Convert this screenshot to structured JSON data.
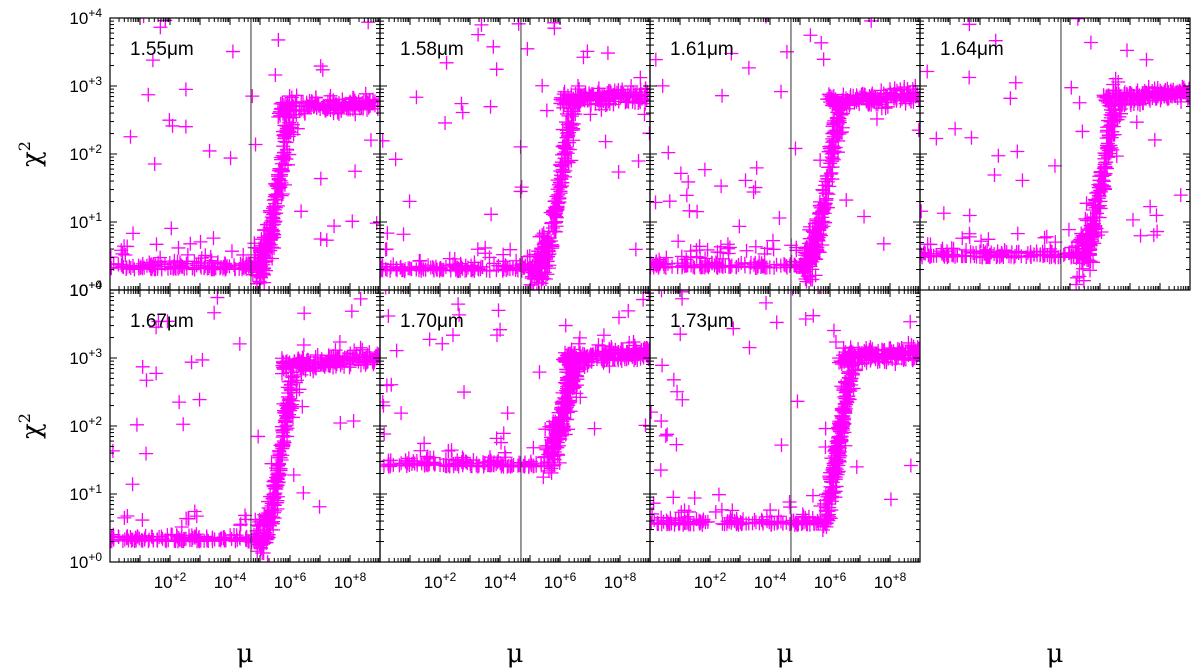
{
  "chart_data": {
    "type": "scatter",
    "marker": "plus",
    "color": "#ff00ff",
    "x_scale": "log",
    "y_scale": "log",
    "xlim": [
      1,
      1000000000
    ],
    "ylim": [
      1,
      10000
    ],
    "x_tick_labels": [
      "10+2",
      "10+4",
      "10+6",
      "10+8"
    ],
    "y_tick_labels": [
      "10+0",
      "10+1",
      "10+2",
      "10+3",
      "10+4"
    ],
    "xlabel": "μ",
    "ylabel": "χ2",
    "vertical_line_x": 50000,
    "panels": [
      {
        "label": "1.55μm",
        "floor": 2.0,
        "knee_x": 70000,
        "mid_x": 400000,
        "plateau": 450
      },
      {
        "label": "1.58μm",
        "floor": 1.9,
        "knee_x": 150000,
        "mid_x": 1000000,
        "plateau": 600
      },
      {
        "label": "1.61μm",
        "floor": 2.1,
        "knee_x": 150000,
        "mid_x": 800000,
        "plateau": 580
      },
      {
        "label": "1.64μm",
        "floor": 3.0,
        "knee_x": 200000,
        "mid_x": 1200000,
        "plateau": 650
      },
      {
        "label": "1.67μm",
        "floor": 2.0,
        "knee_x": 90000,
        "mid_x": 500000,
        "plateau": 800
      },
      {
        "label": "1.70μm",
        "floor": 25,
        "knee_x": 500000,
        "mid_x": 1300000,
        "plateau": 1000
      },
      {
        "label": "1.73μm",
        "floor": 3.5,
        "knee_x": 800000,
        "mid_x": 2000000,
        "plateau": 1000
      }
    ]
  }
}
